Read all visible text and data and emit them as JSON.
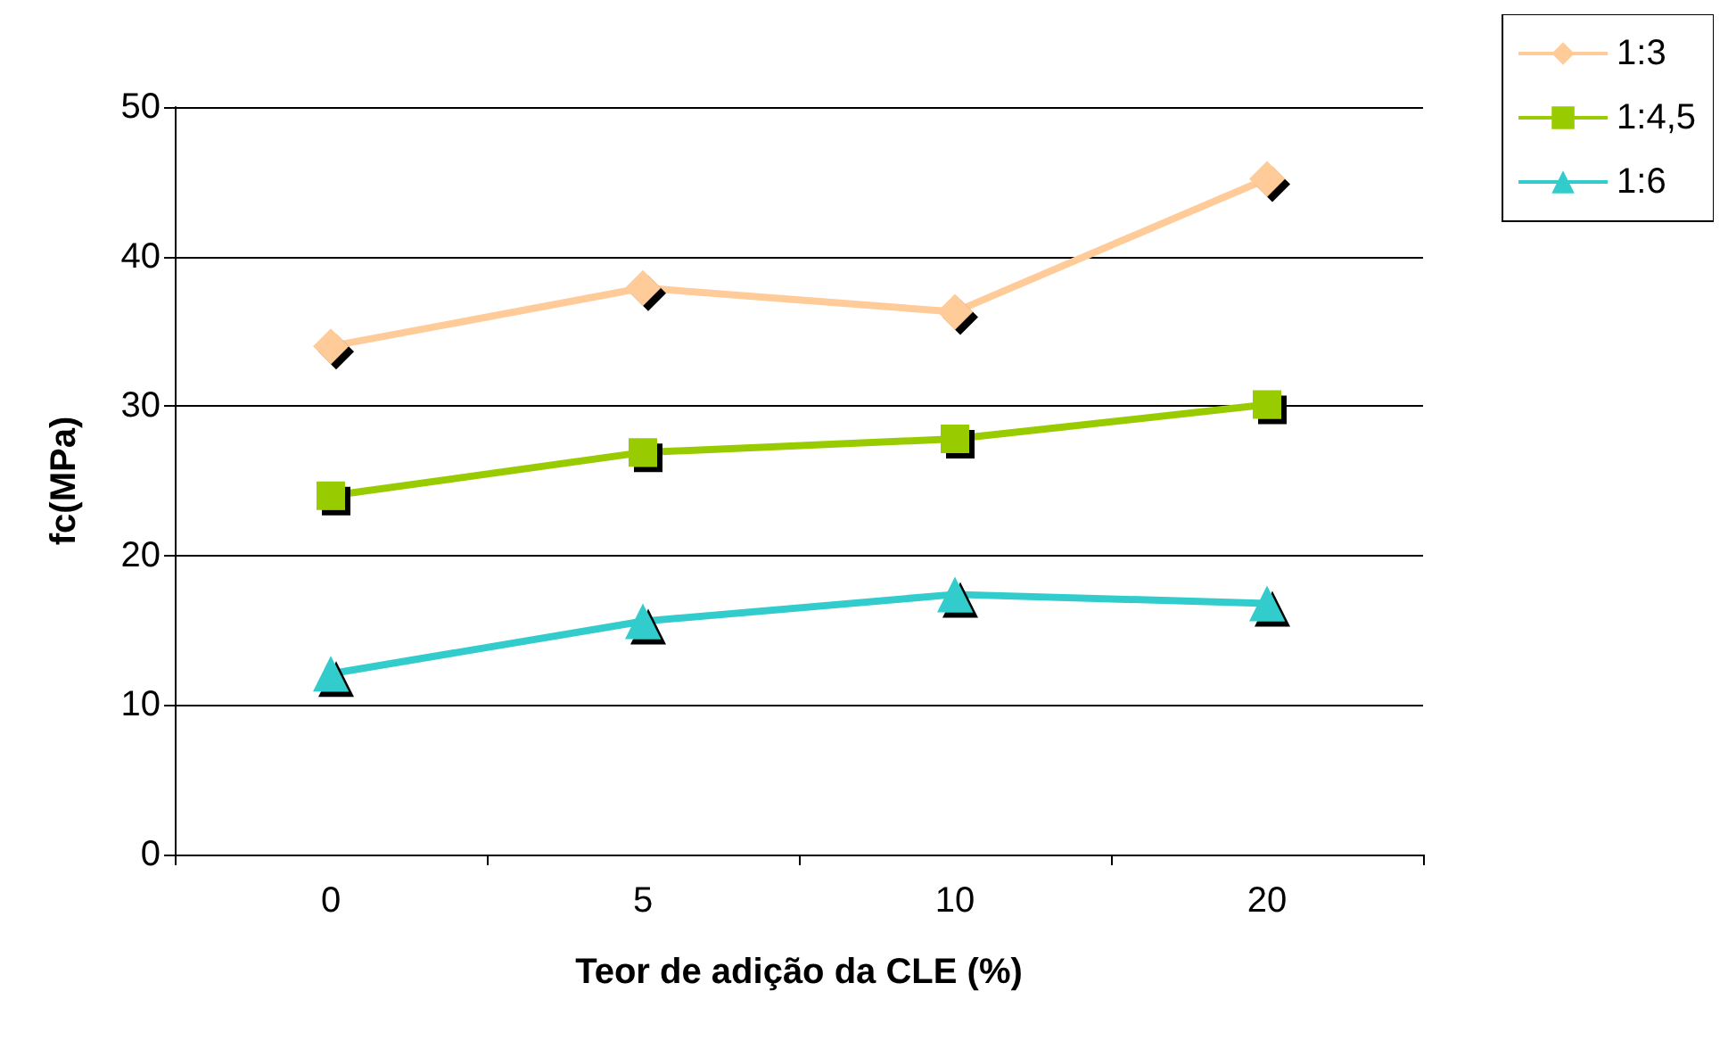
{
  "chart_data": {
    "type": "line",
    "xlabel": "Teor de adição da CLE (%)",
    "ylabel": "fc(MPa)",
    "categories": [
      "0",
      "5",
      "10",
      "20"
    ],
    "series": [
      {
        "name": "1:3",
        "color": "#ffcc99",
        "marker": "diamond",
        "values": [
          34.0,
          37.9,
          36.3,
          45.2
        ]
      },
      {
        "name": "1:4,5",
        "color": "#99cc00",
        "marker": "square",
        "values": [
          24.0,
          26.9,
          27.8,
          30.1
        ]
      },
      {
        "name": "1:6",
        "color": "#33cccc",
        "marker": "triangle",
        "values": [
          12.1,
          15.6,
          17.4,
          16.8
        ]
      }
    ],
    "ylim": [
      0,
      50
    ],
    "yticks": [
      0,
      10,
      20,
      30,
      40,
      50
    ],
    "grid": "y",
    "legend": "top right",
    "line_style": "solid"
  }
}
